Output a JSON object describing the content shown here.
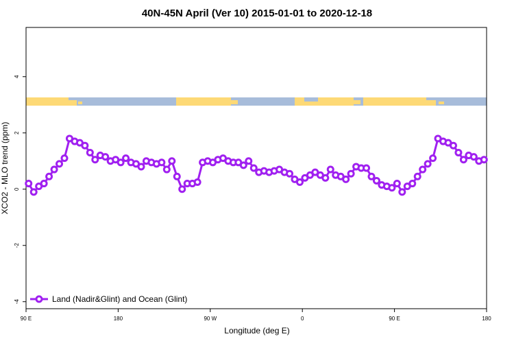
{
  "chart_data": {
    "type": "line",
    "title": "40N-45N April (Ver 10)   2015-01-01 to 2020-12-18",
    "x_label": "Longitude (deg E)",
    "y_label": "XCO2 - MLO trend (ppm)",
    "x": [
      92.5,
      97.5,
      102.5,
      107.5,
      112.5,
      117.5,
      122.5,
      127.5,
      132.5,
      137.5,
      142.5,
      147.5,
      152.5,
      157.5,
      162.5,
      167.5,
      172.5,
      177.5,
      182.5,
      187.5,
      192.5,
      197.5,
      202.5,
      207.5,
      212.5,
      217.5,
      222.5,
      227.5,
      232.5,
      237.5,
      242.5,
      247.5,
      252.5,
      257.5,
      262.5,
      267.5,
      272.5,
      277.5,
      282.5,
      287.5,
      292.5,
      297.5,
      302.5,
      307.5,
      312.5,
      317.5,
      322.5,
      327.5,
      332.5,
      337.5,
      342.5,
      347.5,
      352.5,
      357.5,
      362.5,
      367.5,
      372.5,
      377.5,
      382.5,
      387.5,
      392.5,
      397.5,
      402.5,
      407.5,
      412.5,
      417.5,
      422.5,
      427.5,
      432.5,
      437.5,
      442.5,
      447.5,
      452.5,
      457.5,
      462.5,
      467.5,
      472.5,
      477.5,
      482.5,
      487.5,
      492.5,
      497.5,
      502.5,
      507.5,
      512.5,
      517.5,
      522.5,
      527.5,
      532.5,
      537.5
    ],
    "series": [
      {
        "name": "Land (Nadir&Glint) and Ocean (Glint)",
        "color": "#a020f0",
        "values": [
          0.2,
          -0.1,
          0.1,
          0.2,
          0.45,
          0.7,
          0.9,
          1.1,
          1.8,
          1.7,
          1.65,
          1.55,
          1.3,
          1.05,
          1.2,
          1.15,
          1.0,
          1.05,
          0.95,
          1.1,
          0.95,
          0.9,
          0.8,
          1.0,
          0.95,
          0.9,
          0.95,
          0.7,
          1.0,
          0.45,
          0.0,
          0.2,
          0.2,
          0.25,
          0.95,
          1.0,
          0.95,
          1.05,
          1.1,
          1.0,
          0.95,
          0.95,
          0.85,
          1.0,
          0.75,
          0.6,
          0.65,
          0.6,
          0.65,
          0.7,
          0.6,
          0.55,
          0.35,
          0.25,
          0.4,
          0.5,
          0.6,
          0.5,
          0.4,
          0.7,
          0.5,
          0.45,
          0.35,
          0.55,
          0.8,
          0.75,
          0.75,
          0.45,
          0.3,
          0.15,
          0.1,
          0.05,
          0.2,
          -0.1,
          0.1,
          0.2,
          0.45,
          0.7,
          0.9,
          1.1,
          1.8,
          1.7,
          1.65,
          1.55,
          1.3,
          1.05,
          1.2,
          1.15,
          1.0,
          1.05
        ]
      }
    ],
    "xlim": [
      90,
      540
    ],
    "xticks": [
      {
        "value": 90,
        "label": "90 E"
      },
      180,
      {
        "value": 270,
        "label": "90 W"
      },
      {
        "value": 360,
        "label": "0"
      },
      {
        "value": 450,
        "label": "90 E"
      },
      {
        "value": 540,
        "label": "180"
      }
    ],
    "ylim": [
      -4.25,
      5.75
    ],
    "yticks": [
      -4,
      -2,
      0,
      2,
      4
    ],
    "legend": "bottomleft",
    "grid": false
  }
}
